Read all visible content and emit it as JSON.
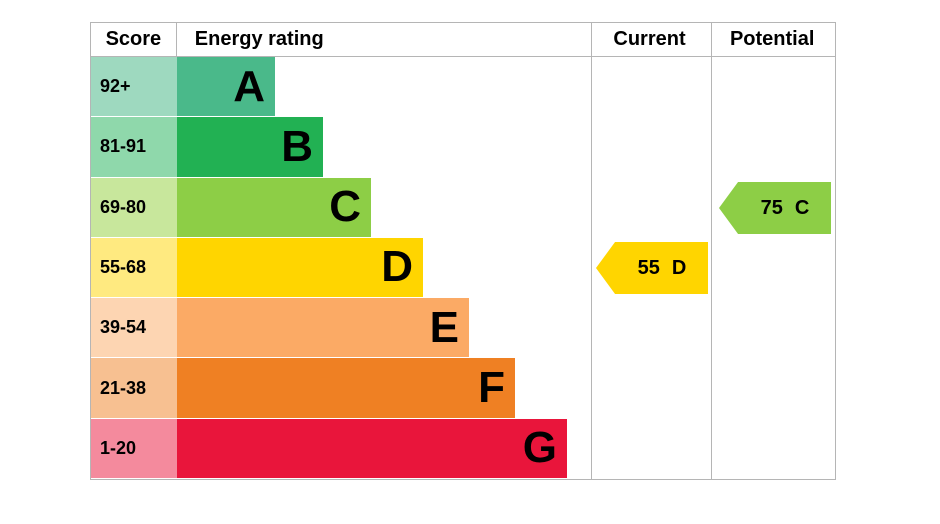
{
  "header": {
    "score": "Score",
    "energy_rating": "Energy rating",
    "current": "Current",
    "potential": "Potential"
  },
  "chart_data": {
    "type": "bar",
    "subtype": "epc-energy-rating",
    "title": "Energy rating",
    "columns": [
      "Score",
      "Energy rating",
      "Current",
      "Potential"
    ],
    "bands": [
      {
        "score_range": "92+",
        "letter": "A",
        "color": "#4ab98a",
        "tint": "#9ed9bf"
      },
      {
        "score_range": "81-91",
        "letter": "B",
        "color": "#22b153",
        "tint": "#8fd8ab"
      },
      {
        "score_range": "69-80",
        "letter": "C",
        "color": "#8dce46",
        "tint": "#c8e79c"
      },
      {
        "score_range": "55-68",
        "letter": "D",
        "color": "#ffd500",
        "tint": "#ffea80"
      },
      {
        "score_range": "39-54",
        "letter": "E",
        "color": "#fbaa65",
        "tint": "#fdd5b2"
      },
      {
        "score_range": "21-38",
        "letter": "F",
        "color": "#ef8023",
        "tint": "#f7c091"
      },
      {
        "score_range": "1-20",
        "letter": "G",
        "color": "#e9153b",
        "tint": "#f48a9d"
      }
    ],
    "current": {
      "value": 55,
      "letter": "D",
      "band": "D",
      "color": "#ffd500"
    },
    "potential": {
      "value": 75,
      "letter": "C",
      "band": "C",
      "color": "#8dce46"
    }
  }
}
